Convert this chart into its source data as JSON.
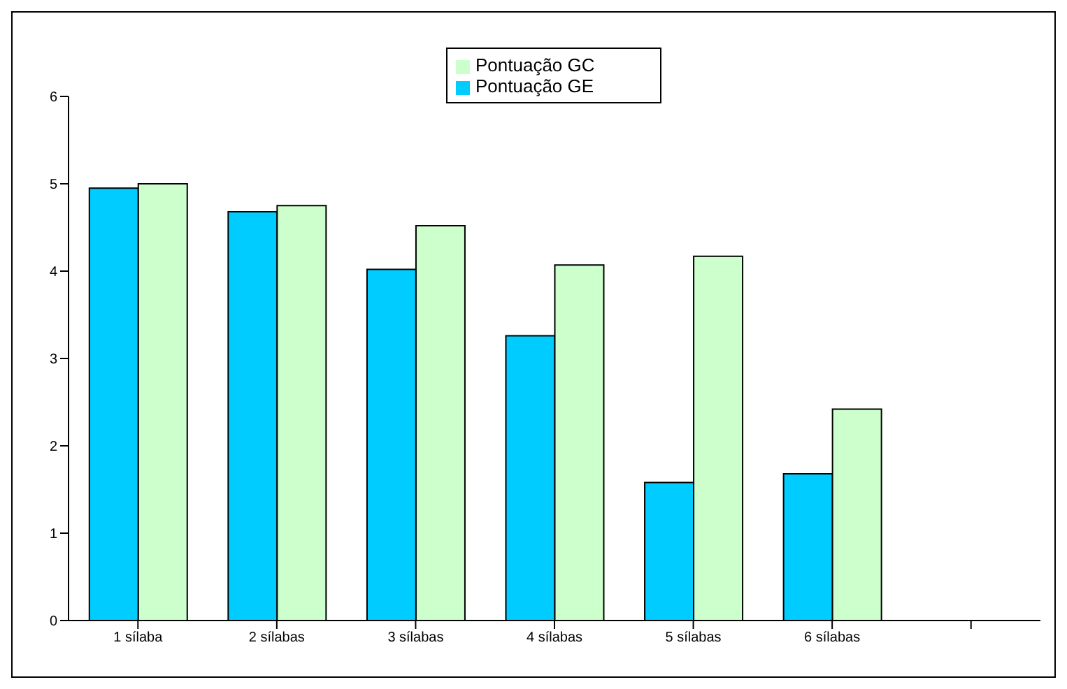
{
  "chart_data": {
    "type": "bar",
    "categories": [
      "1 sílaba",
      "2 sílabas",
      "3 sílabas",
      "4 sílabas",
      "5 sílabas",
      "6 sílabas",
      null
    ],
    "series": [
      {
        "name": "Pontuação GE",
        "color": "#00ccff",
        "values": [
          4.95,
          4.68,
          4.02,
          3.26,
          1.58,
          1.68,
          null
        ]
      },
      {
        "name": "Pontuação GC",
        "color": "#ccffcc",
        "values": [
          5.0,
          4.75,
          4.52,
          4.07,
          4.17,
          2.42,
          null
        ]
      }
    ],
    "ylim": [
      0,
      6
    ],
    "yticks": [
      0,
      1,
      2,
      3,
      4,
      5,
      6
    ],
    "grid": false,
    "legend": "top"
  }
}
